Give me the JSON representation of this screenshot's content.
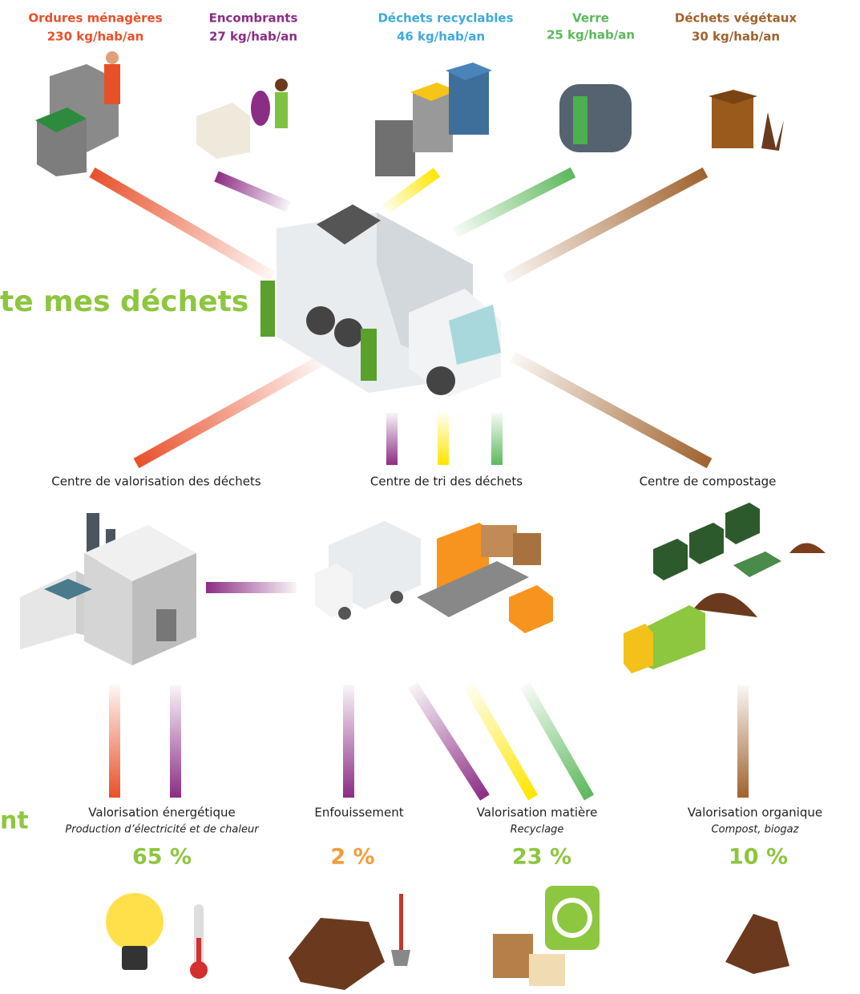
{
  "sources": [
    {
      "name": "Ordures ménagères",
      "amount": "230 kg/hab/an"
    },
    {
      "name": "Encombrants",
      "amount": "27 kg/hab/an"
    },
    {
      "name": "Déchets recyclables",
      "amount": "46 kg/hab/an"
    },
    {
      "name": "Verre",
      "amount": "25 kg/hab/an"
    },
    {
      "name": "Déchets végétaux",
      "amount": "30 kg/hab/an"
    }
  ],
  "side_texts": [
    "te mes déchets",
    "nt"
  ],
  "centers": [
    "Centre de valorisation des déchets",
    "Centre de tri des déchets",
    "Centre de compostage"
  ],
  "outcomes": [
    {
      "name": "Valorisation énergétique",
      "subtitle": "Production d’électricité et de chaleur",
      "share": "65 %"
    },
    {
      "name": "Enfouissement",
      "share": "2 %"
    },
    {
      "name": "Valorisation matière",
      "subtitle": "Recyclage",
      "share": "23 %"
    },
    {
      "name": "Valorisation organique",
      "subtitle": "Compost, biogaz",
      "share": "10 %"
    }
  ]
}
